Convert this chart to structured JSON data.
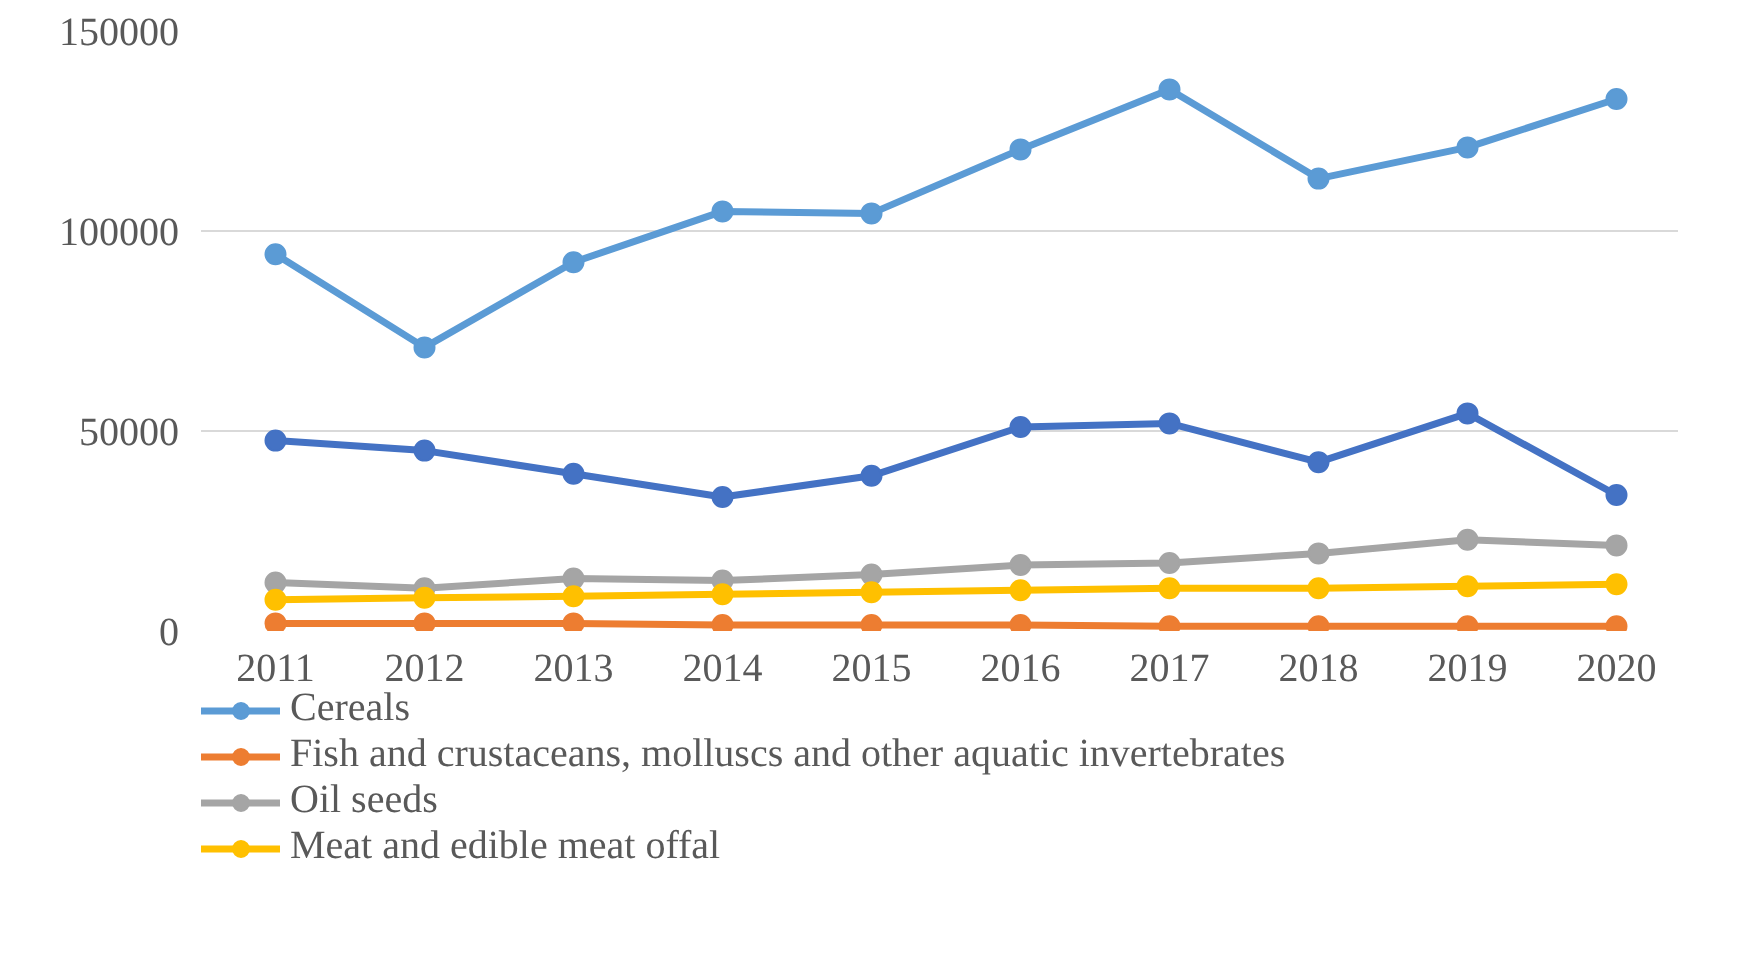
{
  "chart_data": {
    "type": "line",
    "categories": [
      "2011",
      "2012",
      "2013",
      "2014",
      "2015",
      "2016",
      "2017",
      "2018",
      "2019",
      "2020"
    ],
    "series": [
      {
        "name": "Cereals",
        "color": "#5b9bd5",
        "values": [
          94200,
          70900,
          92200,
          104900,
          104400,
          120400,
          135400,
          113100,
          120900,
          133000
        ]
      },
      {
        "color": "#4472c4",
        "values": [
          47600,
          45100,
          39300,
          33500,
          38800,
          51000,
          51900,
          42200,
          54400,
          34000
        ]
      },
      {
        "name": "Fish and crustaceans, molluscs and other aquatic invertebrates",
        "color": "#ed7d31",
        "values": [
          1900,
          1900,
          1900,
          1500,
          1500,
          1500,
          1200,
          1200,
          1200,
          1200
        ]
      },
      {
        "name": "Oil seeds",
        "color": "#a5a5a5",
        "values": [
          12100,
          10700,
          13100,
          12600,
          14100,
          16500,
          17000,
          19400,
          22800,
          21400
        ]
      },
      {
        "name": "Meat and edible meat offal",
        "color": "#ffc000",
        "values": [
          7800,
          8300,
          8700,
          9200,
          9700,
          10200,
          10700,
          10700,
          11200,
          11700
        ]
      }
    ],
    "ylim": [
      0,
      150000
    ],
    "yticks": [
      0,
      50000,
      100000,
      150000
    ],
    "grid": "y",
    "legend": "bottom",
    "marker": "circle",
    "line_style": "solid"
  }
}
